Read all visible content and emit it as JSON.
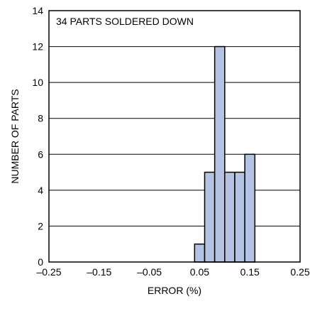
{
  "chart_data": {
    "type": "bar",
    "annotation": "34 PARTS SOLDERED DOWN",
    "xlabel": "ERROR (%)",
    "ylabel": "NUMBER OF PARTS",
    "xlim": [
      -0.25,
      0.25
    ],
    "ylim": [
      0,
      14
    ],
    "xticks": [
      -0.25,
      -0.15,
      -0.05,
      0.05,
      0.15,
      0.25
    ],
    "xtick_labels": [
      "–0.25",
      "–0.15",
      "–0.05",
      "0.05",
      "0.15",
      "0.25"
    ],
    "yticks": [
      0,
      2,
      4,
      6,
      8,
      10,
      12,
      14
    ],
    "ytick_labels": [
      "0",
      "2",
      "4",
      "6",
      "8",
      "10",
      "12",
      "14"
    ],
    "grid": "horizontal",
    "bar_width": 0.02,
    "bars": [
      {
        "x": 0.04,
        "value": 1
      },
      {
        "x": 0.06,
        "value": 5
      },
      {
        "x": 0.08,
        "value": 12
      },
      {
        "x": 0.1,
        "value": 5
      },
      {
        "x": 0.12,
        "value": 5
      },
      {
        "x": 0.14,
        "value": 6
      }
    ],
    "bar_color": "#b4c3e4",
    "bar_stroke": "#000000",
    "grid_color": "#000000"
  }
}
